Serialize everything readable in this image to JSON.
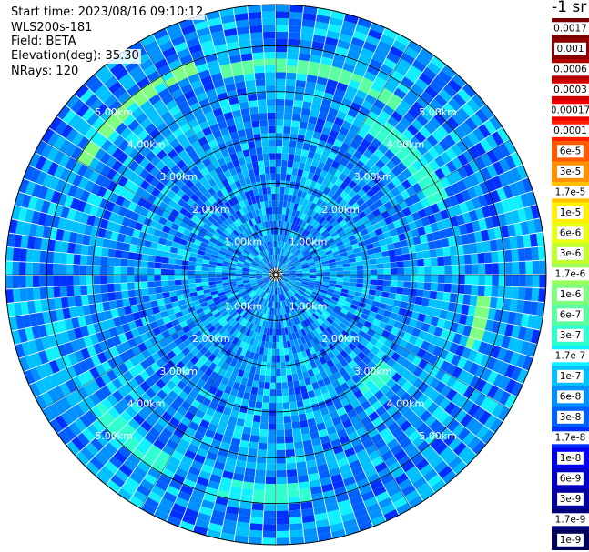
{
  "info": {
    "start_time": "Start time: 2023/08/16 09:10:12",
    "device": "WLS200s-181",
    "field": "Field: BETA",
    "elevation": "Elevation(deg): 35.30",
    "nrays": "NRays: 120"
  },
  "colorbar": {
    "title": "-1 sr",
    "labels": [
      "0.0017",
      "0.001",
      "0.0006",
      "0.0003",
      "0.00017",
      "0.0001",
      "6e-5",
      "3e-5",
      "1.7e-5",
      "1e-5",
      "6e-6",
      "3e-6",
      "1.7e-6",
      "1e-6",
      "6e-7",
      "3e-7",
      "1.7e-7",
      "1e-7",
      "6e-8",
      "3e-8",
      "1.7e-8",
      "1e-8",
      "6e-9",
      "3e-9",
      "1.7e-9",
      "1e-9"
    ],
    "colors": [
      "#7a0000",
      "#8f0000",
      "#b00000",
      "#d00000",
      "#ee0000",
      "#ff2000",
      "#ff5a00",
      "#ff9000",
      "#ffc000",
      "#fff000",
      "#e8ff10",
      "#c0ff30",
      "#9dff5a",
      "#7fff80",
      "#5affa0",
      "#30ffd0",
      "#10f0ff",
      "#00c0ff",
      "#0090ff",
      "#0060ff",
      "#0030ff",
      "#0000f0",
      "#0000c8",
      "#0000a0",
      "#00007a",
      "#000058"
    ]
  },
  "chart_data": {
    "type": "heatmap",
    "subtype": "polar-ppi",
    "field": "BETA",
    "units": "-1 sr",
    "elevation_deg": 35.3,
    "nrays": 120,
    "range_rings_km": [
      1.0,
      2.0,
      3.0,
      4.0,
      5.0
    ],
    "range_labels": [
      "1.00km",
      "2.00km",
      "3.00km",
      "4.00km",
      "5.00km"
    ],
    "max_range_km": 5.9,
    "grid": true,
    "legend_placement": "right",
    "features": [
      {
        "range_km": 4.9,
        "azimuth_deg": [
          300,
          340
        ],
        "value": "1e-6"
      },
      {
        "range_km": 4.6,
        "azimuth_deg": [
          345,
          35
        ],
        "value": "6e-7"
      },
      {
        "range_km": 3.9,
        "azimuth_deg": [
          30,
          65
        ],
        "value": "3e-7"
      },
      {
        "range_km": 4.6,
        "azimuth_deg": [
          95,
          110
        ],
        "value": "1e-6"
      },
      {
        "range_km": 4.8,
        "azimuth_deg": [
          170,
          195
        ],
        "value": "3e-7"
      },
      {
        "range_km": 4.8,
        "azimuth_deg": [
          210,
          235
        ],
        "value": "3e-7"
      },
      {
        "range_km": 3.2,
        "azimuth_deg": [
          130,
          145
        ],
        "value": "3e-7"
      }
    ],
    "typical_value": "1e-8"
  }
}
